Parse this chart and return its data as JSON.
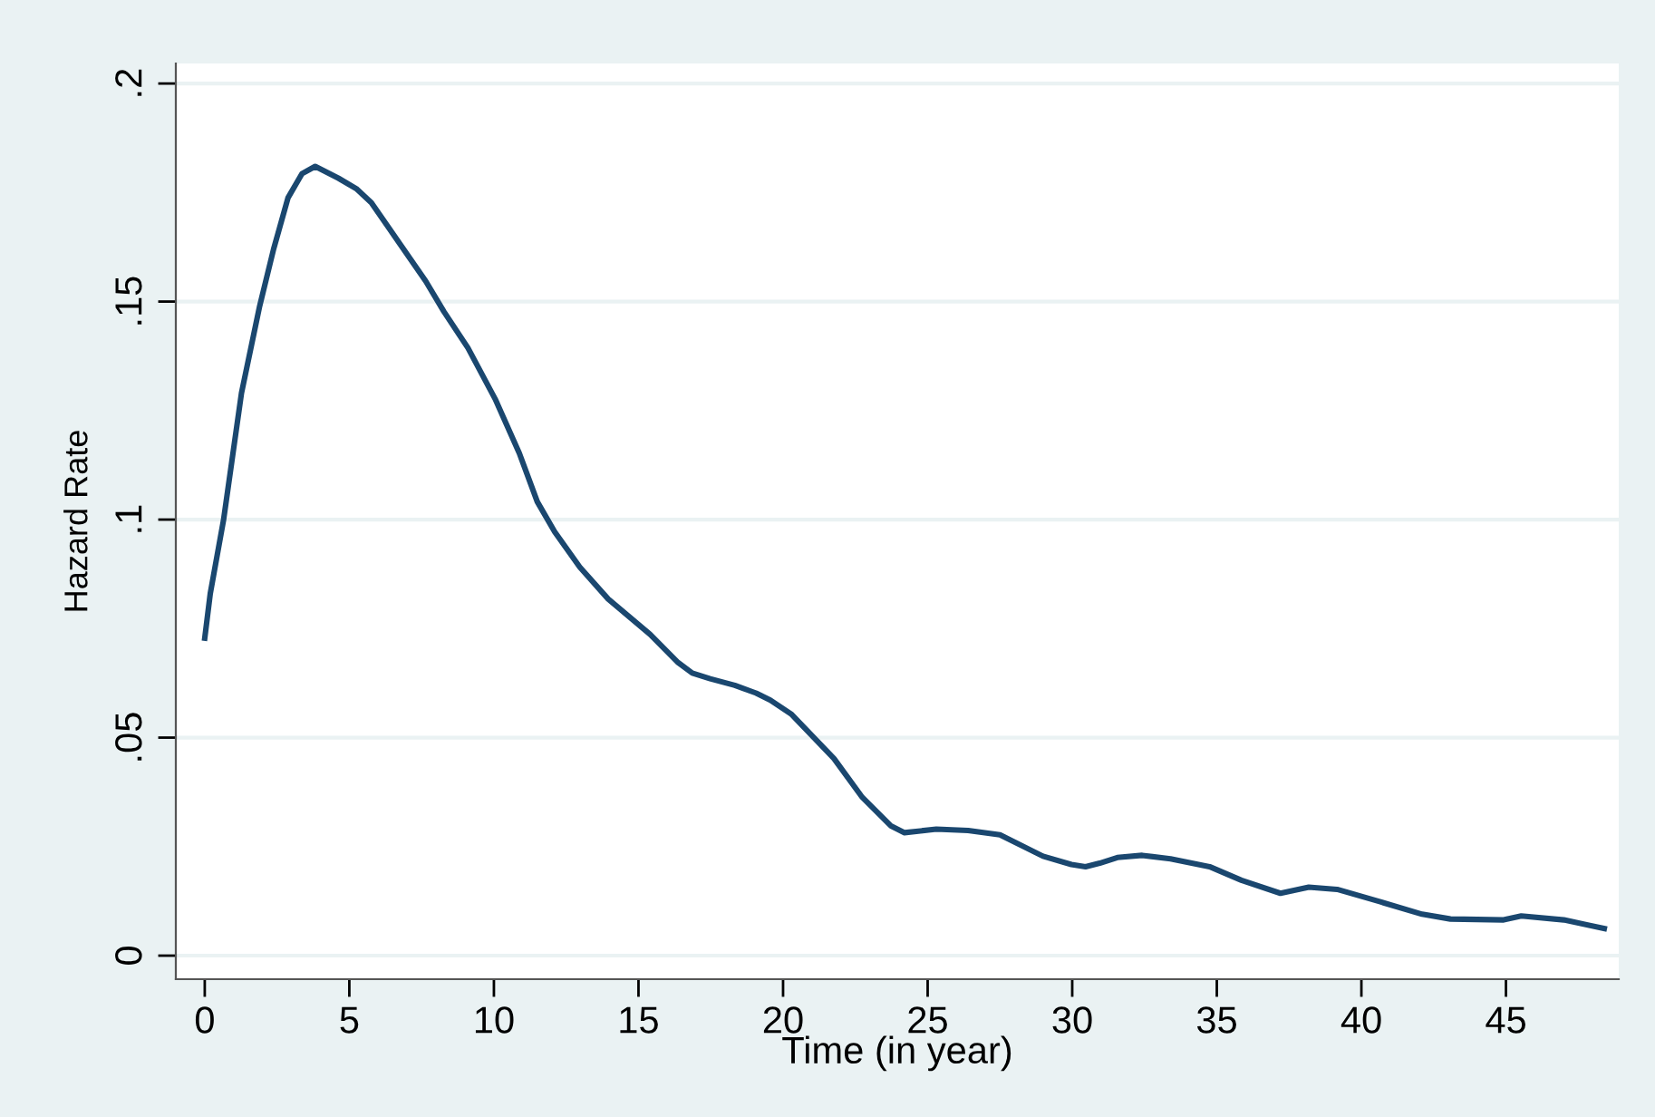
{
  "chart_data": {
    "type": "line",
    "xlabel": "Time (in year)",
    "ylabel": "Hazard Rate",
    "xlim": [
      -1.0,
      48.9
    ],
    "ylim": [
      -0.0054,
      0.2046
    ],
    "xticks": [
      0,
      5,
      10,
      15,
      20,
      25,
      30,
      35,
      40,
      45
    ],
    "yticks": [
      {
        "value": 0,
        "label": "0"
      },
      {
        "value": 0.05,
        "label": ".05"
      },
      {
        "value": 0.1,
        "label": ".1"
      },
      {
        "value": 0.15,
        "label": ".15"
      },
      {
        "value": 0.2,
        "label": ".2"
      }
    ],
    "grid": "y",
    "legend": false,
    "marker": "none",
    "line_style": "solid",
    "series": [
      {
        "color": "#1a476f",
        "x": [
          0,
          0.19,
          0.65,
          1.27,
          1.9,
          2.38,
          2.88,
          3.36,
          3.82,
          4.62,
          5.24,
          5.76,
          6.7,
          7.64,
          8.27,
          9.1,
          10.04,
          10.88,
          11.5,
          12.1,
          12.97,
          13.95,
          15.4,
          16.37,
          16.86,
          17.48,
          18.33,
          19.07,
          19.56,
          20.3,
          21.76,
          22.74,
          23.72,
          24.2,
          25.3,
          26.4,
          27.5,
          28.99,
          29.97,
          30.46,
          30.95,
          31.56,
          32.42,
          33.4,
          34.75,
          35.85,
          37.2,
          38.18,
          39.16,
          40.63,
          42.1,
          43.08,
          44.92,
          45.53,
          47.0,
          48.4
        ],
        "values": [
          0.0728,
          0.083,
          0.0999,
          0.129,
          0.149,
          0.162,
          0.1738,
          0.1793,
          0.181,
          0.1783,
          0.1759,
          0.1727,
          0.1637,
          0.1547,
          0.1477,
          0.1394,
          0.1277,
          0.1152,
          0.1041,
          0.0972,
          0.0891,
          0.0818,
          0.0737,
          0.0672,
          0.0648,
          0.0635,
          0.062,
          0.0602,
          0.0586,
          0.0553,
          0.0452,
          0.0363,
          0.0298,
          0.0282,
          0.029,
          0.0287,
          0.0277,
          0.0228,
          0.0209,
          0.0204,
          0.0212,
          0.0225,
          0.023,
          0.0222,
          0.0204,
          0.0173,
          0.0143,
          0.0157,
          0.0152,
          0.0124,
          0.0095,
          0.0084,
          0.0082,
          0.0091,
          0.0082,
          0.0062
        ]
      }
    ]
  }
}
